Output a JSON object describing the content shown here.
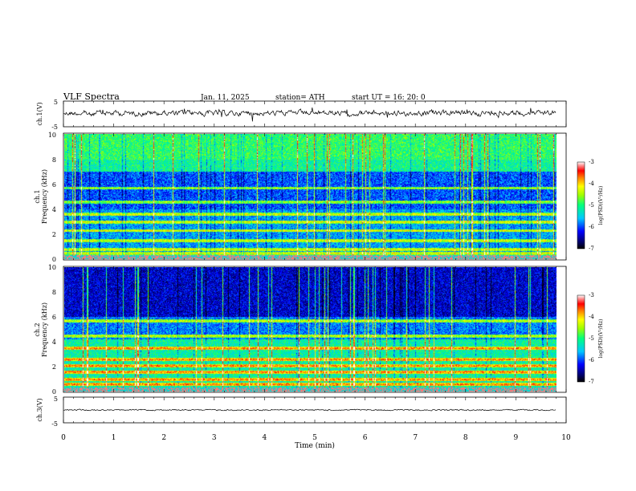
{
  "header": {
    "title": "VLF  Spectra",
    "date": "Jan.  11,  2025",
    "station": "station= ATH",
    "start": "start  UT  =   16: 20: 0"
  },
  "chart_data": [
    {
      "type": "line",
      "ylabel": "ch.1(V)",
      "yticks": [
        "5",
        "-5"
      ],
      "ylim": [
        -5,
        5
      ],
      "xlim": [
        0,
        10
      ],
      "series_color": "#000000"
    },
    {
      "type": "heatmap",
      "ylabel_line1": "ch.1",
      "ylabel_line2": "Frequency (kHz)",
      "ylim": [
        0,
        10
      ],
      "yticks": [
        "0",
        "2",
        "4",
        "6",
        "8",
        "10"
      ],
      "xlim": [
        0,
        9.8
      ],
      "colorbar": {
        "label": "log(PSD)(V²/Hz)",
        "ticks": [
          "-3",
          "-4",
          "-5",
          "-6",
          "-7"
        ],
        "range": [
          -7,
          -3
        ]
      },
      "bands_khz": [
        0.5,
        0.8,
        1.5,
        2.3,
        3.0,
        3.6,
        4.6,
        5.7
      ]
    },
    {
      "type": "heatmap",
      "ylabel_line1": "ch.2",
      "ylabel_line2": "Frequency (kHz)",
      "ylim": [
        0,
        10
      ],
      "yticks": [
        "0",
        "2",
        "4",
        "6",
        "8",
        "10"
      ],
      "xlim": [
        0,
        9.8
      ],
      "colorbar": {
        "label": "log(PSD)(V²/Hz)",
        "ticks": [
          "-3",
          "-4",
          "-5",
          "-6",
          "-7"
        ],
        "range": [
          -7,
          -3
        ]
      },
      "bands_khz": [
        0.6,
        1.0,
        1.6,
        2.1,
        2.6,
        3.5,
        4.5,
        5.7
      ]
    },
    {
      "type": "line",
      "ylabel": "ch.3(V)",
      "yticks": [
        "5",
        "-5"
      ],
      "ylim": [
        -5,
        5
      ],
      "xlim": [
        0,
        10
      ],
      "series_color": "#000000"
    }
  ],
  "xaxis": {
    "label": "Time  (min)",
    "ticks": [
      "0",
      "1",
      "2",
      "3",
      "4",
      "5",
      "6",
      "7",
      "8",
      "9",
      "10"
    ]
  }
}
